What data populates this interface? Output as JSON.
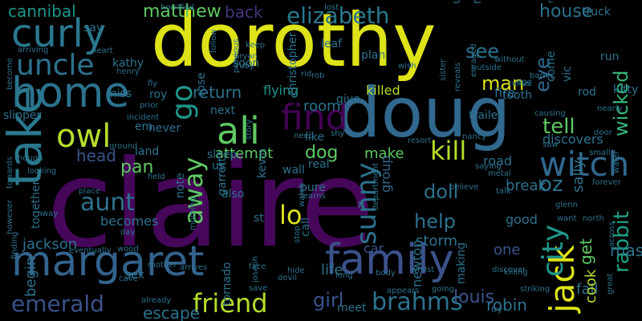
{
  "background": "#000000",
  "words": [
    {
      "text": "claire",
      "color": "#46075a",
      "orientation": "horizontal"
    },
    {
      "text": "dorothy",
      "color": "#dde318",
      "orientation": "horizontal"
    },
    {
      "text": "doug",
      "color": "#31688e",
      "orientation": "horizontal"
    },
    {
      "text": "margaret",
      "color": "#33638d",
      "orientation": "horizontal"
    },
    {
      "text": "family",
      "color": "#3b528b",
      "orientation": "horizontal"
    },
    {
      "text": "home",
      "color": "#2c728e",
      "orientation": "horizontal"
    },
    {
      "text": "take",
      "color": "#2a788e",
      "orientation": "vertical"
    },
    {
      "text": "curly",
      "color": "#2a788e",
      "orientation": "horizontal"
    },
    {
      "text": "owl",
      "color": "#b5de2b",
      "orientation": "horizontal"
    },
    {
      "text": "ali",
      "color": "#5ec962",
      "orientation": "horizontal"
    },
    {
      "text": "jack",
      "color": "#dde318",
      "orientation": "vertical"
    },
    {
      "text": "find",
      "color": "#440154",
      "orientation": "horizontal"
    },
    {
      "text": "witch",
      "color": "#31688e",
      "orientation": "horizontal"
    },
    {
      "text": "uncle",
      "color": "#2c728e",
      "orientation": "horizontal"
    },
    {
      "text": "elizabeth",
      "color": "#2a788e",
      "orientation": "horizontal"
    },
    {
      "text": "matthew",
      "color": "#5ec962",
      "orientation": "horizontal"
    },
    {
      "text": "cannibal",
      "color": "#1f968b",
      "orientation": "horizontal"
    },
    {
      "text": "emerald",
      "color": "#3b528b",
      "orientation": "horizontal"
    },
    {
      "text": "brahms",
      "color": "#2c728e",
      "orientation": "horizontal"
    },
    {
      "text": "friend",
      "color": "#b5de2b",
      "orientation": "horizontal"
    },
    {
      "text": "aunt",
      "color": "#2c728e",
      "orientation": "horizontal"
    },
    {
      "text": "away",
      "color": "#5ec962",
      "orientation": "vertical"
    },
    {
      "text": "kill",
      "color": "#b5de2b",
      "orientation": "horizontal"
    },
    {
      "text": "tell",
      "color": "#5ec962",
      "orientation": "horizontal"
    },
    {
      "text": "house",
      "color": "#2c728e",
      "orientation": "horizontal"
    },
    {
      "text": "city",
      "color": "#1f968b",
      "orientation": "vertical"
    },
    {
      "text": "oz",
      "color": "#2c728e",
      "orientation": "horizontal"
    },
    {
      "text": "rabbit",
      "color": "#1fa187",
      "orientation": "vertical"
    },
    {
      "text": "wicked",
      "color": "#35b779",
      "orientation": "vertical"
    },
    {
      "text": "girl",
      "color": "#3b528b",
      "orientation": "horizontal"
    },
    {
      "text": "lo",
      "color": "#dde318",
      "orientation": "horizontal"
    },
    {
      "text": "sunny",
      "color": "#2c728e",
      "orientation": "vertical"
    },
    {
      "text": "back",
      "color": "#46337e",
      "orientation": "horizontal"
    },
    {
      "text": "go",
      "color": "#1f968b",
      "orientation": "vertical"
    },
    {
      "text": "dog",
      "color": "#5ec962",
      "orientation": "horizontal"
    },
    {
      "text": "see",
      "color": "#2c728e",
      "orientation": "horizontal"
    },
    {
      "text": "man",
      "color": "#dde318",
      "orientation": "horizontal"
    },
    {
      "text": "eye",
      "color": "#31688e",
      "orientation": "vertical"
    },
    {
      "text": "jackson",
      "color": "#2c728e",
      "orientation": "horizontal"
    },
    {
      "text": "help",
      "color": "#2c728e",
      "orientation": "horizontal"
    },
    {
      "text": "doll",
      "color": "#2c728e",
      "orientation": "horizontal"
    },
    {
      "text": "return",
      "color": "#2c728e",
      "orientation": "horizontal"
    },
    {
      "text": "attempt",
      "color": "#5ec962",
      "orientation": "horizontal"
    },
    {
      "text": "flying",
      "color": "#1f968b",
      "orientation": "horizontal"
    },
    {
      "text": "killed",
      "color": "#b5de2b",
      "orientation": "horizontal"
    },
    {
      "text": "make",
      "color": "#5ec962",
      "orientation": "horizontal"
    },
    {
      "text": "group",
      "color": "#31688e",
      "orientation": "vertical"
    },
    {
      "text": "room",
      "color": "#2c728e",
      "orientation": "horizontal"
    },
    {
      "text": "head",
      "color": "#3b528b",
      "orientation": "horizontal"
    },
    {
      "text": "pan",
      "color": "#5ec962",
      "orientation": "horizontal"
    },
    {
      "text": "robin",
      "color": "#2c728e",
      "orientation": "horizontal"
    },
    {
      "text": "escape",
      "color": "#2c728e",
      "orientation": "horizontal"
    },
    {
      "text": "louis",
      "color": "#3b528b",
      "orientation": "horizontal"
    },
    {
      "text": "car",
      "color": "#3b528b",
      "orientation": "horizontal"
    },
    {
      "text": "storm",
      "color": "#2c728e",
      "orientation": "horizontal"
    },
    {
      "text": "one",
      "color": "#3b528b",
      "orientation": "horizontal"
    },
    {
      "text": "life",
      "color": "#2c728e",
      "orientation": "horizontal"
    },
    {
      "text": "fall",
      "color": "#2c728e",
      "orientation": "horizontal"
    },
    {
      "text": "mask",
      "color": "#2c728e",
      "orientation": "horizontal"
    },
    {
      "text": "get",
      "color": "#5ec962",
      "orientation": "vertical"
    },
    {
      "text": "sally",
      "color": "#2c728e",
      "orientation": "vertical"
    },
    {
      "text": "break",
      "color": "#2c728e",
      "orientation": "horizontal"
    },
    {
      "text": "cook",
      "color": "#b5de2b",
      "orientation": "vertical"
    },
    {
      "text": "fire",
      "color": "#2c728e",
      "orientation": "horizontal"
    },
    {
      "text": "road",
      "color": "#2c728e",
      "orientation": "horizontal"
    },
    {
      "text": "good",
      "color": "#2c728e",
      "orientation": "horizontal"
    },
    {
      "text": "discovers",
      "color": "#2c728e",
      "orientation": "horizontal"
    },
    {
      "text": "st",
      "color": "#2c728e",
      "orientation": "horizontal"
    },
    {
      "text": "begin",
      "color": "#2c728e",
      "orientation": "vertical"
    },
    {
      "text": "becomes",
      "color": "#2c728e",
      "orientation": "horizontal"
    },
    {
      "text": "land",
      "color": "#2c728e",
      "orientation": "horizontal"
    },
    {
      "text": "slipper",
      "color": "#2c728e",
      "orientation": "horizontal"
    },
    {
      "text": "miss",
      "color": "#2c728e",
      "orientation": "horizontal"
    },
    {
      "text": "leaf",
      "color": "#2c728e",
      "orientation": "horizontal"
    },
    {
      "text": "plan",
      "color": "#2c728e",
      "orientation": "horizontal"
    },
    {
      "text": "trailer",
      "color": "#2c728e",
      "orientation": "horizontal"
    },
    {
      "text": "tooth",
      "color": "#2c728e",
      "orientation": "horizontal"
    },
    {
      "text": "newton",
      "color": "#2c728e",
      "orientation": "vertical"
    },
    {
      "text": "vic",
      "color": "#2c728e",
      "orientation": "vertical"
    },
    {
      "text": "come",
      "color": "#2c728e",
      "orientation": "vertical"
    },
    {
      "text": "run",
      "color": "#2c728e",
      "orientation": "horizontal"
    },
    {
      "text": "truck",
      "color": "#2c728e",
      "orientation": "horizontal"
    },
    {
      "text": "kitty",
      "color": "#2c728e",
      "orientation": "horizontal"
    },
    {
      "text": "rod",
      "color": "#2c728e",
      "orientation": "horizontal"
    },
    {
      "text": "night",
      "color": "#2c728e",
      "orientation": "vertical"
    },
    {
      "text": "unable",
      "color": "#2c728e",
      "orientation": "vertical"
    },
    {
      "text": "kathy",
      "color": "#2c728e",
      "orientation": "horizontal"
    },
    {
      "text": "rose",
      "color": "#2c728e",
      "orientation": "vertical"
    },
    {
      "text": "roy",
      "color": "#2c728e",
      "orientation": "horizontal"
    },
    {
      "text": "next",
      "color": "#2c728e",
      "orientation": "horizontal"
    },
    {
      "text": "kevin",
      "color": "#2c728e",
      "orientation": "vertical"
    },
    {
      "text": "soon",
      "color": "#2c728e",
      "orientation": "horizontal"
    },
    {
      "text": "christopher",
      "color": "#2c728e",
      "orientation": "vertical"
    },
    {
      "text": "sleep",
      "color": "#2c728e",
      "orientation": "horizontal"
    },
    {
      "text": "garrett",
      "color": "#2c728e",
      "orientation": "vertical"
    },
    {
      "text": "us",
      "color": "#2c728e",
      "orientation": "horizontal"
    },
    {
      "text": "wall",
      "color": "#2c728e",
      "orientation": "horizontal"
    },
    {
      "text": "real",
      "color": "#2c728e",
      "orientation": "horizontal"
    },
    {
      "text": "pure",
      "color": "#2c728e",
      "orientation": "horizontal"
    },
    {
      "text": "also",
      "color": "#2c728e",
      "orientation": "horizontal"
    },
    {
      "text": "note",
      "color": "#2c728e",
      "orientation": "vertical"
    },
    {
      "text": "never",
      "color": "#2c728e",
      "orientation": "horizontal"
    },
    {
      "text": "em",
      "color": "#2c728e",
      "orientation": "horizontal"
    },
    {
      "text": "sex",
      "color": "#2c728e",
      "orientation": "horizontal"
    },
    {
      "text": "tornado",
      "color": "#2c728e",
      "orientation": "vertical"
    },
    {
      "text": "meet",
      "color": "#2c728e",
      "orientation": "horizontal"
    },
    {
      "text": "call",
      "color": "#2c728e",
      "orientation": "vertical"
    },
    {
      "text": "n",
      "color": "#2c728e",
      "orientation": "horizontal"
    },
    {
      "text": "like",
      "color": "#2c728e",
      "orientation": "horizontal"
    },
    {
      "text": "give",
      "color": "#2c728e",
      "orientation": "horizontal"
    },
    {
      "text": "making",
      "color": "#2c728e",
      "orientation": "vertical"
    },
    {
      "text": "say",
      "color": "#2c728e",
      "orientation": "horizontal"
    },
    {
      "text": "together",
      "color": "#2c728e",
      "orientation": "vertical"
    },
    {
      "text": "cave",
      "color": "#2c728e",
      "orientation": "horizontal"
    },
    {
      "text": "arrives",
      "color": "#2c728e",
      "orientation": "horizontal"
    },
    {
      "text": "mother",
      "color": "#2c728e",
      "orientation": "horizontal"
    },
    {
      "text": "wood",
      "color": "#2c728e",
      "orientation": "horizontal"
    },
    {
      "text": "long",
      "color": "#2c728e",
      "orientation": "horizontal"
    },
    {
      "text": "face",
      "color": "#2c728e",
      "orientation": "horizontal"
    },
    {
      "text": "save",
      "color": "#2c728e",
      "orientation": "horizontal"
    },
    {
      "text": "bryan",
      "color": "#2c728e",
      "orientation": "horizontal"
    },
    {
      "text": "ruby",
      "color": "#2c728e",
      "orientation": "horizontal"
    },
    {
      "text": "follow",
      "color": "#2c728e",
      "orientation": "vertical"
    },
    {
      "text": "previous",
      "color": "#2c728e",
      "orientation": "vertical"
    },
    {
      "text": "story",
      "color": "#2c728e",
      "orientation": "vertical"
    },
    {
      "text": "henry",
      "color": "#2c728e",
      "orientation": "horizontal"
    },
    {
      "text": "heart",
      "color": "#2c728e",
      "orientation": "horizontal"
    },
    {
      "text": "arriving",
      "color": "#2c728e",
      "orientation": "horizontal"
    },
    {
      "text": "become",
      "color": "#2c728e",
      "orientation": "vertical"
    },
    {
      "text": "horrified",
      "color": "#2c728e",
      "orientation": "horizontal"
    },
    {
      "text": "fly",
      "color": "#2c728e",
      "orientation": "horizontal"
    },
    {
      "text": "incident",
      "color": "#2c728e",
      "orientation": "horizontal"
    },
    {
      "text": "towards",
      "color": "#2c728e",
      "orientation": "vertical"
    },
    {
      "text": "however",
      "color": "#2c728e",
      "orientation": "vertical"
    },
    {
      "text": "way",
      "color": "#2c728e",
      "orientation": "horizontal"
    },
    {
      "text": "finding",
      "color": "#2c728e",
      "orientation": "vertical"
    },
    {
      "text": "eventually",
      "color": "#2c728e",
      "orientation": "horizontal"
    },
    {
      "text": "place",
      "color": "#2c728e",
      "orientation": "horizontal"
    },
    {
      "text": "field",
      "color": "#2c728e",
      "orientation": "horizontal"
    },
    {
      "text": "ground",
      "color": "#2c728e",
      "orientation": "horizontal"
    },
    {
      "text": "day",
      "color": "#2c728e",
      "orientation": "horizontal"
    },
    {
      "text": "morning",
      "color": "#2c728e",
      "orientation": "vertical"
    },
    {
      "text": "devil",
      "color": "#2c728e",
      "orientation": "horizontal"
    },
    {
      "text": "hide",
      "color": "#2c728e",
      "orientation": "horizontal"
    },
    {
      "text": "stop",
      "color": "#2c728e",
      "orientation": "vertical"
    },
    {
      "text": "watch",
      "color": "#2c728e",
      "orientation": "vertical"
    },
    {
      "text": "learns",
      "color": "#2c728e",
      "orientation": "horizontal"
    },
    {
      "text": "body",
      "color": "#2c728e",
      "orientation": "horizontal"
    },
    {
      "text": "appears",
      "color": "#2c728e",
      "orientation": "horizontal"
    },
    {
      "text": "whilst",
      "color": "#2c728e",
      "orientation": "horizontal"
    },
    {
      "text": "department",
      "color": "#2c728e",
      "orientation": "vertical"
    },
    {
      "text": "believe",
      "color": "#2c728e",
      "orientation": "horizontal"
    },
    {
      "text": "talk",
      "color": "#2c728e",
      "orientation": "horizontal"
    },
    {
      "text": "saying",
      "color": "#2c728e",
      "orientation": "horizontal"
    },
    {
      "text": "metal",
      "color": "#2c728e",
      "orientation": "horizontal"
    },
    {
      "text": "forever",
      "color": "#2c728e",
      "orientation": "horizontal"
    },
    {
      "text": "glenn",
      "color": "#2c728e",
      "orientation": "horizontal"
    },
    {
      "text": "want",
      "color": "#2c728e",
      "orientation": "horizontal"
    },
    {
      "text": "north",
      "color": "#2c728e",
      "orientation": "horizontal"
    },
    {
      "text": "water",
      "color": "#2c728e",
      "orientation": "vertical"
    },
    {
      "text": "great",
      "color": "#2c728e",
      "orientation": "vertical"
    },
    {
      "text": "nearly",
      "color": "#2c728e",
      "orientation": "horizontal"
    },
    {
      "text": "small",
      "color": "#2c728e",
      "orientation": "horizontal"
    },
    {
      "text": "door",
      "color": "#2c728e",
      "orientation": "horizontal"
    },
    {
      "text": "saw",
      "color": "#2c728e",
      "orientation": "horizontal"
    },
    {
      "text": "causing",
      "color": "#2c728e",
      "orientation": "horizontal"
    },
    {
      "text": "killing",
      "color": "#2c728e",
      "orientation": "horizontal"
    },
    {
      "text": "striking",
      "color": "#2c728e",
      "orientation": "horizontal"
    },
    {
      "text": "going",
      "color": "#2c728e",
      "orientation": "horizontal"
    },
    {
      "text": "try",
      "color": "#2c728e",
      "orientation": "horizontal"
    },
    {
      "text": "discover",
      "color": "#2c728e",
      "orientation": "horizontal"
    },
    {
      "text": "shy",
      "color": "#2c728e",
      "orientation": "horizontal"
    },
    {
      "text": "need",
      "color": "#2c728e",
      "orientation": "horizontal"
    },
    {
      "text": "resort",
      "color": "#2c728e",
      "orientation": "horizontal"
    },
    {
      "text": "nancy",
      "color": "#2c728e",
      "orientation": "horizontal"
    },
    {
      "text": "barn",
      "color": "#2c728e",
      "orientation": "horizontal"
    },
    {
      "text": "egg",
      "color": "#2c728e",
      "orientation": "horizontal"
    },
    {
      "text": "noise",
      "color": "#2c728e",
      "orientation": "horizontal"
    },
    {
      "text": "enraged",
      "color": "#2c728e",
      "orientation": "vertical"
    },
    {
      "text": "outside",
      "color": "#2c728e",
      "orientation": "horizontal"
    },
    {
      "text": "sister",
      "color": "#2c728e",
      "orientation": "vertical"
    },
    {
      "text": "without",
      "color": "#2c728e",
      "orientation": "horizontal"
    },
    {
      "text": "wish",
      "color": "#2c728e",
      "orientation": "horizontal"
    },
    {
      "text": "rob",
      "color": "#2c728e",
      "orientation": "horizontal"
    },
    {
      "text": "keep",
      "color": "#2c728e",
      "orientation": "horizontal"
    },
    {
      "text": "lost",
      "color": "#2c728e",
      "orientation": "horizontal"
    },
    {
      "text": "realizes",
      "color": "#2c728e",
      "orientation": "vertical"
    },
    {
      "text": "prior",
      "color": "#2c728e",
      "orientation": "horizontal"
    },
    {
      "text": "though",
      "color": "#2c728e",
      "orientation": "horizontal"
    },
    {
      "text": "rid",
      "color": "#2c728e",
      "orientation": "horizontal"
    },
    {
      "text": "reveals",
      "color": "#2c728e",
      "orientation": "vertical"
    },
    {
      "text": "across",
      "color": "#2c728e",
      "orientation": "vertical"
    },
    {
      "text": "already",
      "color": "#2c728e",
      "orientation": "horizontal"
    },
    {
      "text": "joseph",
      "color": "#2c728e",
      "orientation": "vertical"
    },
    {
      "text": "looking",
      "color": "#2c728e",
      "orientation": "horizontal"
    }
  ]
}
